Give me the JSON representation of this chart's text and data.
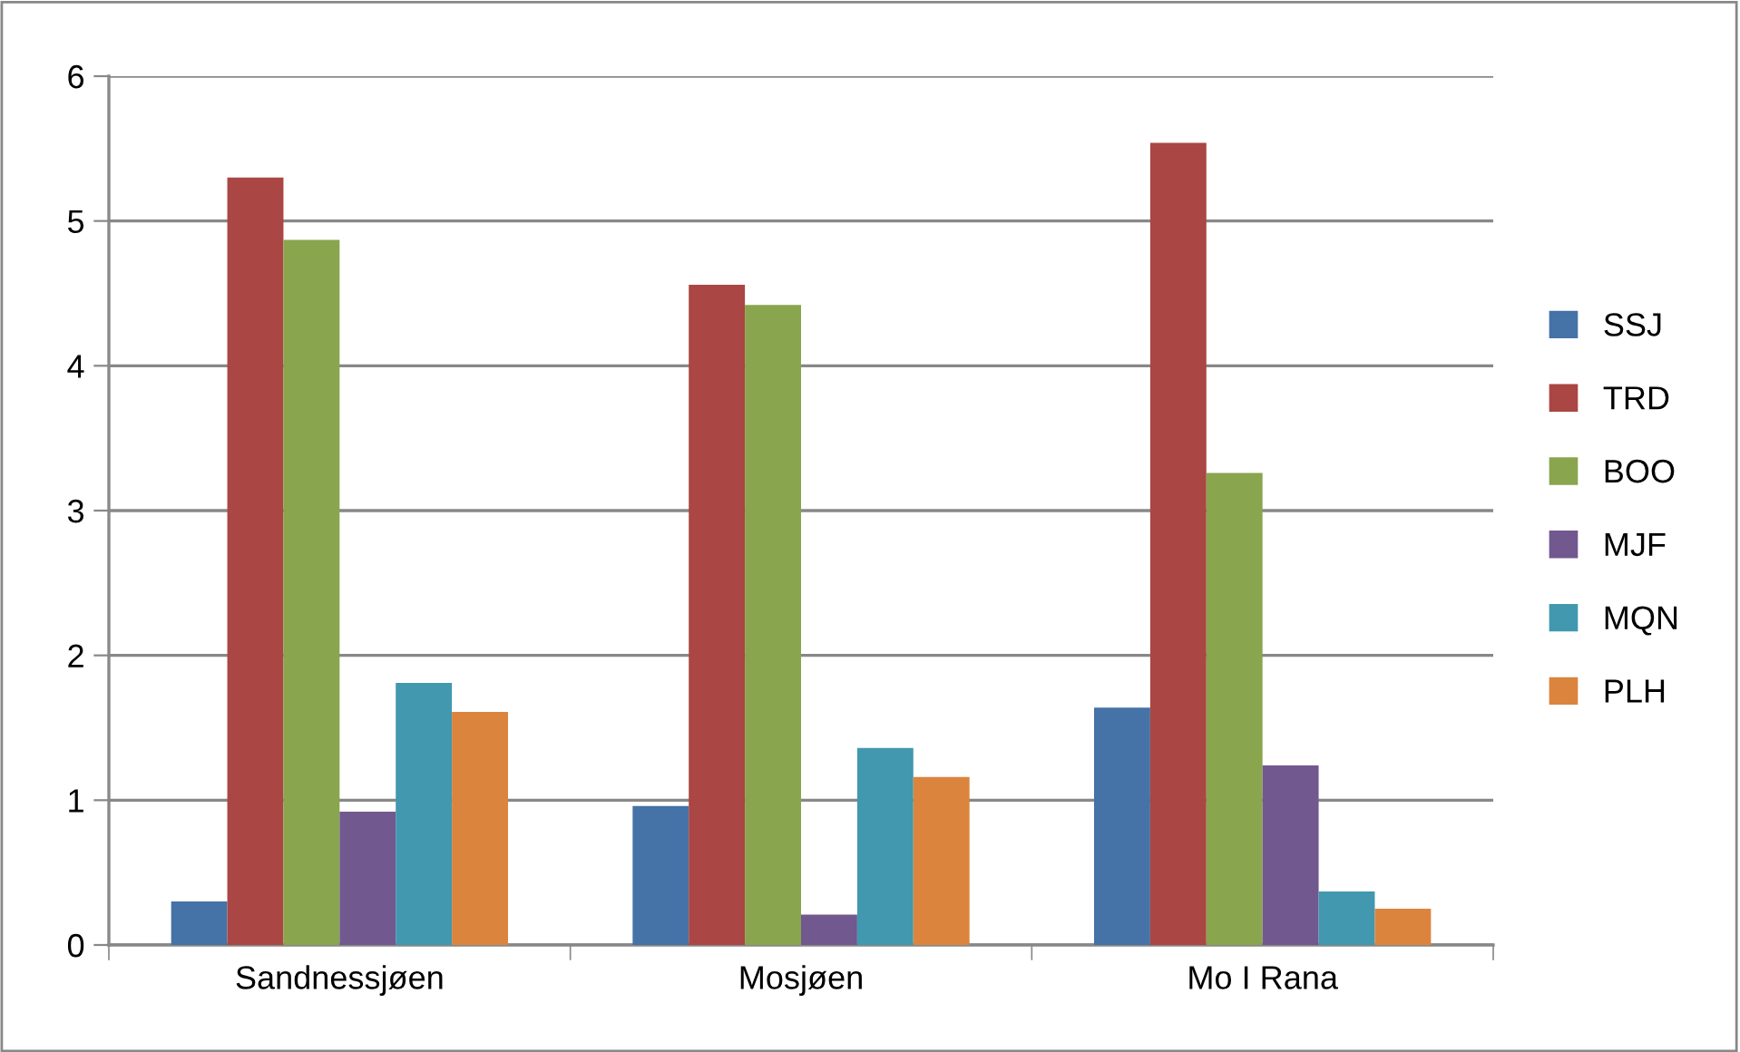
{
  "chart_data": {
    "type": "bar",
    "categories": [
      "Sandnessjøen",
      "Mosjøen",
      "Mo I Rana"
    ],
    "series": [
      {
        "name": "SSJ",
        "color": "#4572a7",
        "values": [
          0.3,
          0.96,
          1.64
        ]
      },
      {
        "name": "TRD",
        "color": "#aa4643",
        "values": [
          5.3,
          4.56,
          5.54
        ]
      },
      {
        "name": "BOO",
        "color": "#89a54e",
        "values": [
          4.87,
          4.42,
          3.26
        ]
      },
      {
        "name": "MJF",
        "color": "#71588f",
        "values": [
          0.92,
          0.21,
          1.24
        ]
      },
      {
        "name": "MQN",
        "color": "#4198af",
        "values": [
          1.81,
          1.36,
          0.37
        ]
      },
      {
        "name": "PLH",
        "color": "#db843d",
        "values": [
          1.61,
          1.16,
          0.25
        ]
      }
    ],
    "ylim": [
      0,
      6
    ],
    "yticks": [
      0,
      1,
      2,
      3,
      4,
      5,
      6
    ],
    "grid": "y",
    "legend": "right"
  }
}
